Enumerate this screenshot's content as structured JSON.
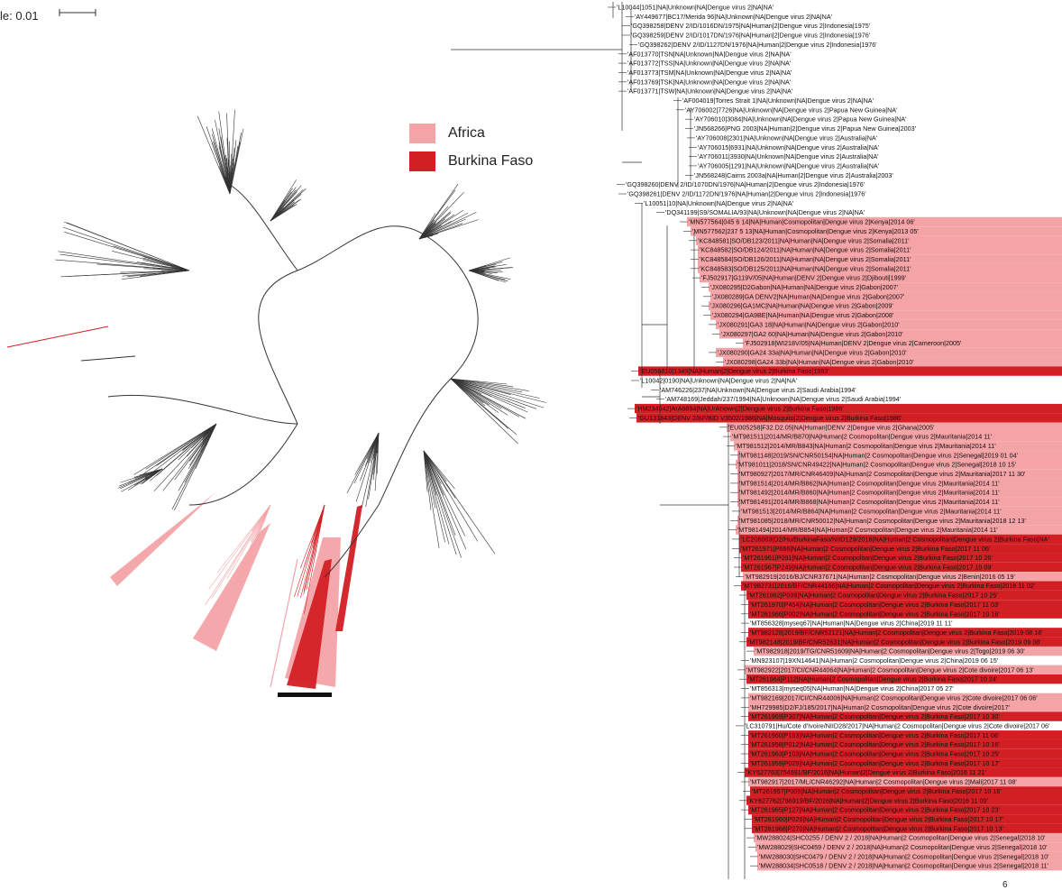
{
  "scale_bar": {
    "label": "le: 0.01"
  },
  "legend": {
    "items": [
      {
        "label": "Africa",
        "color": "#f4a3a6"
      },
      {
        "label": "Burkina Faso",
        "color": "#d21f24"
      }
    ]
  },
  "colors": {
    "africa": "#f4a3a6",
    "burkina": "#d21f24",
    "branch": "#333333",
    "clade_bar": "#111111"
  },
  "page_number": "6",
  "tips": [
    {
      "label": "'L10044|1051|NA|Unknown|NA|Dengue virus 2|NA|NA'",
      "group": "none"
    },
    {
      "label": "'AY449677|BC17/Merida 96|NA|Unknown|NA|Dengue virus 2|NA|NA'",
      "group": "none"
    },
    {
      "label": "'GQ398258|DENV 2/ID/1016DN/1975|NA|Human|2|Dengue virus 2|Indonesia|1975'",
      "group": "none"
    },
    {
      "label": "'GQ398259|DENV 2/ID/1017DN/1976|NA|Human|2|Dengue virus 2|Indonesia|1976'",
      "group": "none"
    },
    {
      "label": "'GQ398262|DENV 2/ID/1127DN/1976|NA|Human|2|Dengue virus 2|Indonesia|1976'",
      "group": "none"
    },
    {
      "label": "'AF013770|TSN|NA|Unknown|NA|Dengue virus 2|NA|NA'",
      "group": "none"
    },
    {
      "label": "'AF013772|TSS|NA|Unknown|NA|Dengue virus 2|NA|NA'",
      "group": "none"
    },
    {
      "label": "'AF013773|TSM|NA|Unknown|NA|Dengue virus 2|NA|NA'",
      "group": "none"
    },
    {
      "label": "'AF013769|TSK|NA|Unknown|NA|Dengue virus 2|NA|NA'",
      "group": "none"
    },
    {
      "label": "'AF013771|TSW|NA|Unknown|NA|Dengue virus 2|NA|NA'",
      "group": "none"
    },
    {
      "label": "'AF004019|Torres Strait 1|NA|Unknown|NA|Dengue virus 2|NA|NA'",
      "group": "none"
    },
    {
      "label": "'AY706002|7726|NA|Unknown|NA|Dengue virus 2|Papua New Guinea|NA'",
      "group": "none"
    },
    {
      "label": "'AY706010|3084|NA|Unknown|NA|Dengue virus 2|Papua New Guinea|NA'",
      "group": "none"
    },
    {
      "label": "'JN568266|PNG 2003|NA|Human|2|Dengue virus 2|Papua New Guinea|2003'",
      "group": "none"
    },
    {
      "label": "'AY706008|2301|NA|Unknown|NA|Dengue virus 2|Australia|NA'",
      "group": "none"
    },
    {
      "label": "'AY706015|6931|NA|Unknown|NA|Dengue virus 2|Australia|NA'",
      "group": "none"
    },
    {
      "label": "'AY706011|3930|NA|Unknown|NA|Dengue virus 2|Australia|NA'",
      "group": "none"
    },
    {
      "label": "'AY706005|1291|NA|Unknown|NA|Dengue virus 2|Australia|NA'",
      "group": "none"
    },
    {
      "label": "'JN568248|Cairns 2003a|NA|Human|2|Dengue virus 2|Australia|2003'",
      "group": "none"
    },
    {
      "label": "'GQ398260|DENV 2/ID/1070DN/1976|NA|Human|2|Dengue virus 2|Indonesia|1976'",
      "group": "none"
    },
    {
      "label": "'GQ398261|DENV 2/ID/1172DN/1976|NA|Human|2|Dengue virus 2|Indonesia|1976'",
      "group": "none"
    },
    {
      "label": "'L10051|10|NA|Unknown|NA|Dengue virus 2|NA|NA'",
      "group": "none"
    },
    {
      "label": "'DQ341199|S9/SOMALIA/93|NA|Unknown|NA|Dengue virus 2|NA|NA'",
      "group": "none"
    },
    {
      "label": "'MN577564|045 6 14|NA|Human|Cosmopolitan|Dengue virus 2|Kenya|2014 06'",
      "group": "africa"
    },
    {
      "label": "'MN577562|237 5 13|NA|Human|Cosmopolitan|Dengue virus 2|Kenya|2013 05'",
      "group": "africa"
    },
    {
      "label": "'KC848581|SO/DB123/2011|NA|Human|NA|Dengue virus 2|Somalia|2011'",
      "group": "africa"
    },
    {
      "label": "'KC848582|SO/DB124/2011|NA|Human|NA|Dengue virus 2|Somalia|2011'",
      "group": "africa"
    },
    {
      "label": "'KC848584|SO/DB126/2011|NA|Human|NA|Dengue virus 2|Somalia|2011'",
      "group": "africa"
    },
    {
      "label": "'KC848583|SO/DB125/2011|NA|Human|NA|Dengue virus 2|Somalia|2011'",
      "group": "africa"
    },
    {
      "label": "'FJ502917|G119V/05|NA|Human|DENV 2|Dengue virus 2|Djibouti|1999'",
      "group": "africa"
    },
    {
      "label": "'JX080295|D2Gabon|NA|Human|NA|Dengue virus 2|Gabon|2007'",
      "group": "africa"
    },
    {
      "label": "'JX080289|GA DENV2|NA|Human|NA|Dengue virus 2|Gabon|2007'",
      "group": "africa"
    },
    {
      "label": "'JX080296|GA1MC|NA|Human|NA|Dengue virus 2|Gabon|2009'",
      "group": "africa"
    },
    {
      "label": "'JX080294|GA9BE|NA|Human|NA|Dengue virus 2|Gabon|2008'",
      "group": "africa"
    },
    {
      "label": "'JX080291|GA3 18|NA|Human|NA|Dengue virus 2|Gabon|2010'",
      "group": "africa"
    },
    {
      "label": "'JX080297|GA2 60|NA|Human|NA|Dengue virus 2|Gabon|2010'",
      "group": "africa"
    },
    {
      "label": "'FJ502918|WI218V/05|NA|Human|DENV 2|Dengue virus 2|Cameroon|2005'",
      "group": "africa"
    },
    {
      "label": "'JX080290|GA24 33a|NA|Human|NA|Dengue virus 2|Gabon|2010'",
      "group": "africa"
    },
    {
      "label": "'JX080298|GA24 33b|NA|Human|NA|Dengue virus 2|Gabon|2010'",
      "group": "africa"
    },
    {
      "label": "'EU056810|1349|NA|Human|2|Dengue virus 2|Burkina Faso|1983'",
      "group": "burkina"
    },
    {
      "label": "'L10042|0190|NA|Unknown|NA|Dengue virus 2|NA|NA'",
      "group": "none"
    },
    {
      "label": "'AM746226|237|NA|Unknown|NA|Dengue virus 2|Saudi Arabia|1994'",
      "group": "none"
    },
    {
      "label": "'AM748169|Jeddah/237/1994|NA|Unknown|NA|Dengue virus 2|Saudi Arabia|1994'",
      "group": "none"
    },
    {
      "label": "'HM234642|ArA6894|NA|Unknown|2|Dengue virus 2|Burkina Faso|1986'",
      "group": "burkina"
    },
    {
      "label": "'GU131843|DENV 2/BF/BID V3502/1986|NA|Mosquito|2|Dengue virus 2|Burkina Faso|1986'",
      "group": "burkina"
    },
    {
      "label": "'EU005258|F32.D2.05|NA|Human|DENV 2|Dengue virus 2|Ghana|2005'",
      "group": "africa"
    },
    {
      "label": "'MT981511|2014/MR/B870|NA|Human|2 Cosmopolitan|Dengue virus 2|Mauritania|2014 11'",
      "group": "africa"
    },
    {
      "label": "'MT981512|2014/MR/B843|NA|Human|2 Cosmopolitan|Dengue virus 2|Mauritania|2014 11'",
      "group": "africa"
    },
    {
      "label": "'MT981148|2019/SN/CNR50154|NA|Human|2 Cosmopolitan|Dengue virus 2|Senegal|2019 01 04'",
      "group": "africa"
    },
    {
      "label": "'MT981011|2018/SN/CNR49422|NA|Human|2 Cosmopolitan|Dengue virus 2|Senegal|2018 10 15'",
      "group": "africa"
    },
    {
      "label": "'MT980927|2017/MR/CNR46409|NA|Human|2 Cosmopolitan|Dengue virus 2|Mauritania|2017 11 30'",
      "group": "africa"
    },
    {
      "label": "'MT981514|2014/MR/B862|NA|Human|2 Cosmopolitan|Dengue virus 2|Mauritania|2014 11'",
      "group": "africa"
    },
    {
      "label": "'MT981492|2014/MR/B860|NA|Human|2 Cosmopolitan|Dengue virus 2|Mauritania|2014 11'",
      "group": "africa"
    },
    {
      "label": "'MT981491|2014/MR/B868|NA|Human|2 Cosmopolitan|Dengue virus 2|Mauritania|2014 11'",
      "group": "africa"
    },
    {
      "label": "'MT981513|2014/MR/B864|NA|Human|2 Cosmopolitan|Dengue virus 2|Mauritania|2014 11'",
      "group": "africa"
    },
    {
      "label": "'MT981085|2018/MR/CNR50012|NA|Human|2 Cosmopolitan|Dengue virus 2|Mauritania|2018 12 13'",
      "group": "africa"
    },
    {
      "label": "'MT981494|2014/MR/B854|NA|Human|2 Cosmopolitan|Dengue virus 2|Mauritania|2014 11'",
      "group": "africa"
    },
    {
      "label": "'LC206003|D2/Hu/BurkinaFaso/NIID129/2016|NA|Human|2 Cosmopolitan|Dengue virus 2|Burkina Faso|NA'",
      "group": "burkina"
    },
    {
      "label": "'MT261971|P666|NA|Human|2 Cosmopolitan|Dengue virus 2|Burkina Faso|2017 11 06'",
      "group": "burkina"
    },
    {
      "label": "'MT261961|P091|NA|Human|2 Cosmopolitan|Dengue virus 2|Burkina Faso|2017 10 26'",
      "group": "burkina"
    },
    {
      "label": "'MT261967|P249|NA|Human|2 Cosmopolitan|Dengue virus 2|Burkina Faso|2017 10 09'",
      "group": "burkina"
    },
    {
      "label": "'MT982919|2016/BJ/CNR37671|NA|Human|2 Cosmopolitan|Dengue virus 2|Benin|2016 05 19'",
      "group": "africa"
    },
    {
      "label": "'MT982731|2016/BF/CNR44166|NA|Human|2 Cosmopolitan|Dengue virus 2|Burkina Faso|2016 11 02'",
      "group": "burkina"
    },
    {
      "label": "'MT261962|P099|NA|Human|2 Cosmopolitan|Dengue virus 2|Burkina Faso|2017 10 25'",
      "group": "burkina"
    },
    {
      "label": "'MT261970|P454|NA|Human|2 Cosmopolitan|Dengue virus 2|Burkina Faso|2017 11 03'",
      "group": "burkina"
    },
    {
      "label": "'MT261966|P002|NA|Human|2 Cosmopolitan|Dengue virus 2|Burkina Faso|2017 10 16'",
      "group": "burkina"
    },
    {
      "label": "'MT856328|myseq67|NA|Human|NA|Dengue virus 2|China|2019 11 11'",
      "group": "none"
    },
    {
      "label": "'MT982128|2019/BF/CNR52121|NA|Human|2 Cosmopolitan|Dengue virus 2|Burkina Faso|2019 08 16'",
      "group": "burkina"
    },
    {
      "label": "'MT982148|2019/BF/CNR52631|NA|Human|2 Cosmopolitan|Dengue virus 2|Burkina Faso|2019 09 08'",
      "group": "burkina"
    },
    {
      "label": "'MT982918|2019/TG/CNR51609|NA|Human|2 Cosmopolitan|Dengue virus 2|Togo|2019 06 30'",
      "group": "africa"
    },
    {
      "label": "'MN923107|19XN14641|NA|Human|2 Cosmopolitan|Dengue virus 2|China|2019 06 15'",
      "group": "none"
    },
    {
      "label": "'MT982922|2017/CI/CNR44064|NA|Human|2 Cosmopolitan|Dengue virus 2|Cote divoire|2017 06 13'",
      "group": "africa"
    },
    {
      "label": "'MT261964|P112|NA|Human|2 Cosmopolitan|Dengue virus 2|Burkina Faso|2017 10 24'",
      "group": "burkina"
    },
    {
      "label": "'MT856313|myseq05|NA|Human|NA|Dengue virus 2|China|2017 05 27'",
      "group": "none"
    },
    {
      "label": "'MT982169|2017/CI/CNR44006|NA|Human|2 Cosmopolitan|Dengue virus 2|Cote divoire|2017 06 06'",
      "group": "africa"
    },
    {
      "label": "'MH729985|D2/FJ/185/2017|NA|Human|2 Cosmopolitan|Dengue virus 2|Cote divoire|2017'",
      "group": "africa"
    },
    {
      "label": "'MT261969|P307|NA|Human|2 Cosmopolitan|Dengue virus 2|Burkina Faso|2017 10 30'",
      "group": "burkina"
    },
    {
      "label": "'LC310791|Hu/Cote d'Ivoire/NIID28/2017|NA|Human|2 Cosmopolitan|Dengue virus 2|Cote divoire|2017 06'",
      "group": "none"
    },
    {
      "label": "'MT261960|P153|NA|Human|2 Cosmopolitan|Dengue virus 2|Burkina Faso|2017 11 06'",
      "group": "burkina"
    },
    {
      "label": "'MT261958|P012|NA|Human|2 Cosmopolitan|Dengue virus 2|Burkina Faso|2017 10 16'",
      "group": "burkina"
    },
    {
      "label": "'MT261963|P103|NA|Human|2 Cosmopolitan|Dengue virus 2|Burkina Faso|2017 10 25'",
      "group": "burkina"
    },
    {
      "label": "'MT261959|P029|NA|Human|2 Cosmopolitan|Dengue virus 2|Burkina Faso|2017 10 17'",
      "group": "burkina"
    },
    {
      "label": "'KY627763|754691/BF/2016|NA|Human|2|Dengue virus 2|Burkina Faso|2016 11 21'",
      "group": "burkina"
    },
    {
      "label": "'MT982917|2017/ML/CNR46292|NA|Human|2 Cosmopolitan|Dengue virus 2|Mali|2017 11 08'",
      "group": "africa"
    },
    {
      "label": "'MT261957|P009|NA|Human|2 Cosmopolitan|Dengue virus 2|Burkina Faso|2017 10 16'",
      "group": "burkina"
    },
    {
      "label": "'KY627762|786919/BF/2016|NA|Human|2|Dengue virus 2|Burkina Faso|2016 11 09'",
      "group": "burkina"
    },
    {
      "label": "'MT261965|P127|NA|Human|2 Cosmopolitan|Dengue virus 2|Burkina Faso|2017 10 23'",
      "group": "burkina"
    },
    {
      "label": "'MT261960|P026|NA|Human|2 Cosmopolitan|Dengue virus 2|Burkina Faso|2017 10 17'",
      "group": "burkina"
    },
    {
      "label": "'MT261968|P270|NA|Human|2 Cosmopolitan|Dengue virus 2|Burkina Faso|2017 10 13'",
      "group": "burkina"
    },
    {
      "label": "'MW288024|SHC0255 / DENV 2 / 2018|NA|Human|2 Cosmopolitan|Dengue virus 2|Senegal|2018 10'",
      "group": "africa"
    },
    {
      "label": "'MW288029|SHC0459 / DENV 2 / 2018|NA|Human|2 Cosmopolitan|Dengue virus 2|Senegal|2018 10'",
      "group": "africa"
    },
    {
      "label": "'MW288030|SHC0479 / DENV 2 / 2018|NA|Human|2 Cosmopolitan|Dengue virus 2|Senegal|2018 10'",
      "group": "africa"
    },
    {
      "label": "'MW288034|SHC0518 / DENV 2 / 2018|NA|Human|2 Cosmopolitan|Dengue virus 2|Senegal|2018 11'",
      "group": "africa"
    }
  ]
}
